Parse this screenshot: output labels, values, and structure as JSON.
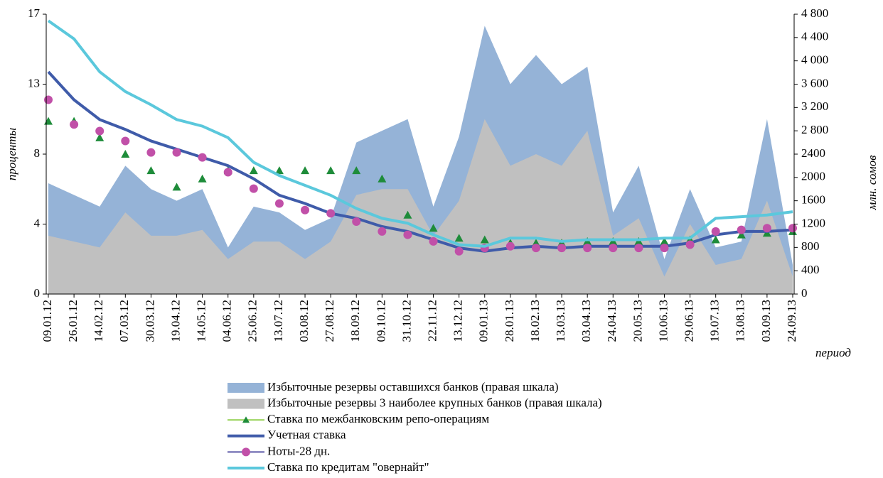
{
  "chart_data": {
    "type": "line",
    "y_label": "проценты",
    "y2_label": "млн. сомов",
    "x_label": "период",
    "categories": [
      "09.01.12",
      "26.01.12",
      "14.02.12",
      "07.03.12",
      "30.03.12",
      "19.04.12",
      "14.05.12",
      "04.06.12",
      "25.06.12",
      "13.07.12",
      "03.08.12",
      "27.08.12",
      "18.09.12",
      "09.10.12",
      "31.10.12",
      "22.11.12",
      "13.12.12",
      "09.01.13",
      "28.01.13",
      "18.02.13",
      "13.03.13",
      "03.04.13",
      "24.04.13",
      "20.05.13",
      "10.06.13",
      "29.06.13",
      "19.07.13",
      "13.08.13",
      "03.09.13",
      "24.09.13"
    ],
    "ylim": [
      0,
      17
    ],
    "yticks": [
      0,
      {
        "value": 4.25,
        "label": "4"
      },
      {
        "value": 8.5,
        "label": "8"
      },
      {
        "value": 12.75,
        "label": "13"
      },
      17
    ],
    "y2lim": [
      0,
      4800
    ],
    "y2ticks": [
      0,
      400,
      800,
      1200,
      1600,
      2000,
      2400,
      {
        "value": 2800,
        "label": "2 800"
      },
      {
        "value": 3200,
        "label": "3 200"
      },
      {
        "value": 3600,
        "label": "3 600"
      },
      {
        "value": 4000,
        "label": "4 000"
      },
      {
        "value": 4400,
        "label": "4 400"
      },
      {
        "value": 4800,
        "label": "4 800"
      }
    ],
    "series": [
      {
        "name": "Избыточные резервы оставшихся банков (правая шкала)",
        "color": "#95b3d7",
        "style": "area",
        "axis": "y2",
        "values": [
          1900,
          1700,
          1500,
          2200,
          1800,
          1600,
          1800,
          800,
          1500,
          1400,
          1100,
          1300,
          2600,
          2800,
          3000,
          1500,
          2700,
          4600,
          3600,
          4100,
          3600,
          3900,
          1400,
          2200,
          600,
          1800,
          800,
          900,
          3000,
          500
        ]
      },
      {
        "name": "Избыточные резервы 3 наиболее крупных банков (правая шкала)",
        "color": "#c0c0c0",
        "style": "area",
        "axis": "y2",
        "values": [
          1000,
          900,
          800,
          1400,
          1000,
          1000,
          1100,
          600,
          900,
          900,
          600,
          900,
          1700,
          1800,
          1800,
          1000,
          1600,
          3000,
          2200,
          2400,
          2200,
          2800,
          1000,
          1300,
          300,
          1200,
          500,
          600,
          1600,
          300
        ]
      },
      {
        "name": "Ставка по межбанковским репо-операциям",
        "color": "#1e8c3a",
        "line_color": "#92d050",
        "style": "markers",
        "marker": "triangle",
        "values": [
          10.5,
          10.5,
          9.5,
          8.5,
          7.5,
          6.5,
          7.0,
          7.5,
          7.5,
          7.5,
          7.5,
          7.5,
          7.5,
          7.0,
          4.8,
          4.0,
          3.4,
          3.3,
          3.1,
          3.1,
          3.1,
          3.2,
          3.2,
          3.2,
          3.2,
          3.3,
          3.3,
          3.6,
          3.7,
          3.8
        ]
      },
      {
        "name": "Учетная ставка",
        "color": "#3f5ba9",
        "style": "line",
        "values": [
          13.5,
          11.8,
          10.6,
          10.0,
          9.3,
          8.8,
          8.3,
          7.8,
          7.0,
          6.0,
          5.5,
          4.9,
          4.6,
          4.1,
          3.8,
          3.3,
          2.8,
          2.6,
          2.8,
          2.9,
          2.8,
          2.9,
          2.9,
          2.9,
          2.9,
          3.1,
          3.6,
          3.8,
          3.8,
          3.9
        ]
      },
      {
        "name": "Ноты-28 дн.",
        "color": "#c150a8",
        "line_color": "#5b57a6",
        "style": "markers",
        "marker": "circle",
        "values": [
          11.8,
          10.3,
          9.9,
          9.3,
          8.6,
          8.6,
          8.3,
          7.4,
          6.4,
          5.5,
          5.1,
          4.9,
          4.4,
          3.8,
          3.6,
          3.2,
          2.6,
          2.8,
          2.9,
          2.8,
          2.8,
          2.8,
          2.8,
          2.8,
          2.8,
          3.0,
          3.8,
          3.9,
          4.0,
          4.0
        ]
      },
      {
        "name": "Ставка по кредитам \"овернайт\"",
        "color": "#5bc8dc",
        "style": "line",
        "values": [
          16.6,
          15.5,
          13.5,
          12.3,
          11.5,
          10.6,
          10.2,
          9.5,
          8.0,
          7.2,
          6.6,
          6.0,
          5.2,
          4.6,
          4.3,
          3.6,
          3.0,
          2.9,
          3.4,
          3.4,
          3.2,
          3.3,
          3.3,
          3.3,
          3.4,
          3.4,
          4.6,
          4.7,
          4.8,
          5.0
        ]
      }
    ]
  }
}
